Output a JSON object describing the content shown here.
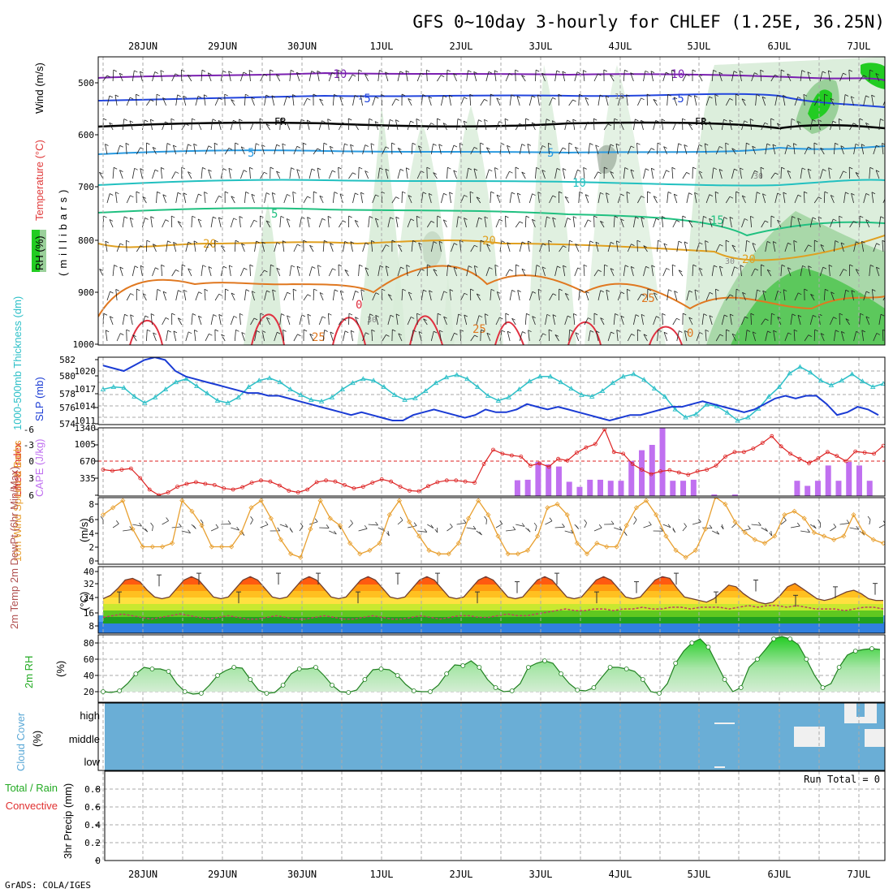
{
  "title": "GFS 0~10day 3-hourly for CHLEF (1.25E, 36.25N)",
  "footer": "GrADS: COLA/IGES",
  "dates": [
    "28JUN",
    "29JUN",
    "30JUN",
    "1JUL",
    "2JUL",
    "3JUL",
    "4JUL",
    "5JUL",
    "6JUL",
    "7JUL"
  ],
  "colors": {
    "rh_green": "#22cc22",
    "temp_red": "#ff3b3b",
    "wind_black": "#000000",
    "slp_blue": "#1a3bd4",
    "thickness_cyan": "#2ec0c8",
    "cape_purple": "#c070f0",
    "lifted_red": "#dd2222",
    "wind10_orange": "#e8a030",
    "cloud_blue": "#6aaed6",
    "precip_green": "#22aa22"
  },
  "panels": {
    "upper": {
      "label_rh": "RH (%)",
      "label_temp": "Temperature (°C)",
      "label_wind": "Wind (m/s)",
      "ylabel": "(millibars)",
      "yticks": [
        "500",
        "600",
        "700",
        "800",
        "900",
        "1000"
      ],
      "isotherm_labels": [
        "-10",
        "-10",
        "-5",
        "-5",
        "FR",
        "FR",
        "5",
        "5",
        "10",
        "5",
        "15",
        "20",
        "20",
        "20",
        "25",
        "25",
        "25",
        "0",
        "0",
        "30",
        "30",
        "30",
        "10"
      ]
    },
    "slp": {
      "label_thickness": "1000-500mb Thickness (dm)",
      "label_slp": "SLP (mb)",
      "yticks_left": [
        "582",
        "580",
        "578",
        "576",
        "574"
      ],
      "yticks_right": [
        "1020",
        "1017",
        "1014",
        "1011"
      ]
    },
    "cape": {
      "label_li": "Lifted Index",
      "label_cape": "CAPE (J/kg)",
      "yticks_left": [
        "-6",
        "-3",
        "0",
        "3",
        "6"
      ],
      "yticks_right": [
        "1340",
        "1005",
        "670",
        "335"
      ]
    },
    "wind10": {
      "label": "10m Wind Speed & Barbs",
      "unit": "(m/s)",
      "yticks": [
        "8",
        "6",
        "4",
        "2",
        "0"
      ]
    },
    "temp2m": {
      "label": "2m Temp 2m DewPt (6hr Min/Max)",
      "unit": "(°C)",
      "yticks": [
        "40",
        "32",
        "24",
        "16",
        "8"
      ]
    },
    "rh2m": {
      "label": "2m RH",
      "unit": "(%)",
      "yticks": [
        "80",
        "60",
        "40",
        "20"
      ]
    },
    "cloud": {
      "label": "Cloud Cover",
      "unit": "(%)",
      "levels": [
        "high",
        "middle",
        "low"
      ]
    },
    "precip": {
      "label_total": "Total / Rain",
      "label_conv": "Convective",
      "ylabel": "3hr Precip (mm)",
      "yticks": [
        "0.8",
        "0.6",
        "0.4",
        "0.2",
        "0"
      ],
      "run_total": "Run Total = 0"
    }
  },
  "chart_data": [
    {
      "type": "line",
      "panel": "slp",
      "series": [
        {
          "name": "SLP (mb)",
          "axis": "right",
          "values": [
            1021,
            1020.5,
            1020,
            1021,
            1022,
            1022.5,
            1022,
            1020,
            1019,
            1018.5,
            1018,
            1017.5,
            1017,
            1016.5,
            1016,
            1016,
            1015.5,
            1015.5,
            1015,
            1014.5,
            1014,
            1013.5,
            1013,
            1012.5,
            1012,
            1012.5,
            1012,
            1011.5,
            1011,
            1011,
            1012,
            1012.5,
            1013,
            1012.5,
            1012,
            1011.5,
            1012,
            1013,
            1012.5,
            1012.5,
            1013,
            1014,
            1013.5,
            1013,
            1013.5,
            1013,
            1012.5,
            1012,
            1011.5,
            1011,
            1011.5,
            1012,
            1012,
            1012.5,
            1013,
            1013.5,
            1013.5,
            1014,
            1014.5,
            1014,
            1013.5,
            1013,
            1012.5,
            1013,
            1014,
            1015,
            1015.5,
            1015,
            1015.5,
            1015.5,
            1014,
            1012,
            1012.5,
            1013.5,
            1013,
            1012
          ]
        },
        {
          "name": "1000-500mb Thickness (dm)",
          "axis": "left",
          "values": [
            578.3,
            578.6,
            578.5,
            577.4,
            576.6,
            577.3,
            578.3,
            579.2,
            579.6,
            578.7,
            577.8,
            576.9,
            576.6,
            577.3,
            578.6,
            579.4,
            579.7,
            579.2,
            578.3,
            577.6,
            577.0,
            576.8,
            577.3,
            578.3,
            579.1,
            579.6,
            579.4,
            578.6,
            577.6,
            577.0,
            577.2,
            578.1,
            579.1,
            579.8,
            580.1,
            579.6,
            578.6,
            577.5,
            576.9,
            577.3,
            578.3,
            579.3,
            579.9,
            579.9,
            579.2,
            578.4,
            577.6,
            577.4,
            578.1,
            579.1,
            579.9,
            580.2,
            579.5,
            578.4,
            577.4,
            575.8,
            574.8,
            575.2,
            576.4,
            576.2,
            575.4,
            574.4,
            574.8,
            575.9,
            577.4,
            578.6,
            580.3,
            581.1,
            580.4,
            579.4,
            578.8,
            579.4,
            580.2,
            579.3,
            578.6,
            579.0
          ]
        }
      ]
    },
    {
      "type": "bar",
      "panel": "cape",
      "series": [
        {
          "name": "CAPE (J/kg)",
          "values": [
            0,
            0,
            0,
            0,
            0,
            0,
            0,
            0,
            0,
            0,
            0,
            0,
            0,
            0,
            0,
            0,
            0,
            0,
            0,
            0,
            0,
            0,
            0,
            0,
            0,
            0,
            0,
            0,
            0,
            0,
            0,
            0,
            0,
            0,
            0,
            0,
            0,
            0,
            0,
            0,
            310,
            320,
            670,
            620,
            580,
            280,
            180,
            320,
            320,
            300,
            300,
            690,
            900,
            1005,
            1340,
            300,
            300,
            320,
            0,
            30,
            0,
            30,
            0,
            0,
            0,
            0,
            0,
            300,
            200,
            300,
            600,
            300,
            670,
            600,
            300,
            0
          ]
        }
      ]
    },
    {
      "type": "line",
      "panel": "cape",
      "series": [
        {
          "name": "Lifted Index",
          "axis": "left",
          "values": [
            1.5,
            1.7,
            1.5,
            1.3,
            3.0,
            5.0,
            6.0,
            5.5,
            4.5,
            4.0,
            3.7,
            4.0,
            4.2,
            4.8,
            5.0,
            4.6,
            3.8,
            3.4,
            3.6,
            4.3,
            5.2,
            5.5,
            5.0,
            3.7,
            3.4,
            3.6,
            4.2,
            4.8,
            4.5,
            3.8,
            3.2,
            3.6,
            4.5,
            5.2,
            5.3,
            4.4,
            3.7,
            3.4,
            3.4,
            3.6,
            3.8,
            0.5,
            -2.0,
            -1.3,
            -1.0,
            -0.8,
            0.8,
            0.4,
            1.0,
            -0.4,
            -0.1,
            -1.5,
            -2.4,
            -3.0,
            -5.6,
            -1.6,
            -1.3,
            0.5,
            1.5,
            2.3,
            1.8,
            1.6,
            2.0,
            2.4,
            1.8,
            1.5,
            0.8,
            -0.8,
            -1.6,
            -1.6,
            -2.2,
            -3.2,
            -4.4,
            -2.6,
            -1.3,
            -0.4,
            0.4,
            -0.5,
            -1.6,
            -0.9,
            0,
            -1.7,
            -1.5,
            -1.3,
            -2.7
          ]
        }
      ]
    },
    {
      "type": "line",
      "panel": "wind10",
      "series": [
        {
          "name": "10m Wind Speed (m/s)",
          "values": [
            6.5,
            7.5,
            8.5,
            4.5,
            2.0,
            2.0,
            2.0,
            2.5,
            8.5,
            7.0,
            5.0,
            2.0,
            2.0,
            2.0,
            4.0,
            7.5,
            8.5,
            6.0,
            3.0,
            1.0,
            0.5,
            4.5,
            8.5,
            6.0,
            5.0,
            2.5,
            1.0,
            1.5,
            2.5,
            6.5,
            8.5,
            5.5,
            3.5,
            1.5,
            1.0,
            1.0,
            2.5,
            6.0,
            8.5,
            6.5,
            3.5,
            1.0,
            1.0,
            1.5,
            3.5,
            7.5,
            8.0,
            6.5,
            2.5,
            1.0,
            2.5,
            2.0,
            2.0,
            5.0,
            7.5,
            8.5,
            6.5,
            3.5,
            1.5,
            0.5,
            1.5,
            4.5,
            9.0,
            8.0,
            5.5,
            4.0,
            3.0,
            2.5,
            3.5,
            6.5,
            7.0,
            6.0,
            4.0,
            3.5,
            3.0,
            3.5,
            6.5,
            4.0,
            3.0,
            2.5
          ]
        }
      ]
    },
    {
      "type": "area",
      "panel": "temp2m",
      "series": [
        {
          "name": "2m Temp (°C)",
          "values": [
            24,
            26,
            30,
            35,
            36,
            34,
            29,
            25,
            24,
            25,
            30,
            35,
            37,
            35,
            30,
            25,
            24,
            25,
            30,
            35,
            37,
            35,
            30,
            25,
            24,
            25,
            30,
            35,
            37,
            35,
            30,
            25,
            24,
            25,
            30,
            35,
            37,
            35,
            30,
            25,
            24,
            25,
            30,
            35,
            37,
            35,
            30,
            25,
            24,
            25,
            30,
            35,
            37,
            35,
            30,
            25,
            24,
            25,
            30,
            35,
            37,
            35,
            30,
            25,
            24,
            25,
            30,
            35,
            37,
            35,
            30,
            25,
            24,
            25,
            30,
            35,
            37,
            36,
            30,
            25,
            24,
            23,
            22,
            24,
            28,
            32,
            31,
            27,
            24,
            22,
            21,
            22,
            26,
            31,
            33,
            30,
            27,
            24,
            23,
            24,
            26,
            28,
            29,
            27,
            24,
            23,
            23
          ]
        },
        {
          "name": "2m DewPt (°C)",
          "values": [
            13,
            14,
            15,
            14,
            13,
            12,
            13,
            14,
            15,
            14,
            13,
            12,
            13,
            14,
            13,
            12,
            12,
            13,
            14,
            13,
            12,
            12,
            13,
            14,
            13,
            12,
            12,
            13,
            14,
            13,
            12,
            12,
            13,
            14,
            13,
            12,
            13,
            14,
            14,
            13,
            13,
            14,
            15,
            14,
            14,
            15,
            16,
            17,
            18,
            17,
            17,
            18,
            18,
            17,
            18,
            18,
            19,
            18,
            18,
            19,
            19,
            18,
            19,
            19,
            19,
            18,
            19,
            20,
            19,
            20,
            20,
            19,
            20,
            19,
            18,
            18,
            18,
            17,
            18,
            19,
            19,
            18
          ]
        }
      ]
    },
    {
      "type": "area",
      "panel": "rh2m",
      "series": [
        {
          "name": "2m RH (%)",
          "values": [
            20,
            19,
            21,
            30,
            42,
            50,
            48,
            48,
            45,
            30,
            20,
            17,
            18,
            28,
            40,
            46,
            50,
            49,
            35,
            22,
            18,
            19,
            28,
            42,
            48,
            48,
            50,
            40,
            28,
            20,
            19,
            22,
            35,
            47,
            48,
            47,
            40,
            29,
            21,
            20,
            20,
            28,
            42,
            53,
            52,
            58,
            50,
            35,
            25,
            20,
            21,
            30,
            50,
            55,
            58,
            55,
            42,
            30,
            22,
            21,
            25,
            38,
            50,
            50,
            48,
            45,
            35,
            20,
            18,
            30,
            55,
            70,
            80,
            85,
            75,
            55,
            35,
            20,
            25,
            50,
            60,
            72,
            85,
            88,
            85,
            78,
            60,
            40,
            25,
            30,
            50,
            65,
            70,
            72,
            73,
            72
          ]
        }
      ]
    }
  ]
}
